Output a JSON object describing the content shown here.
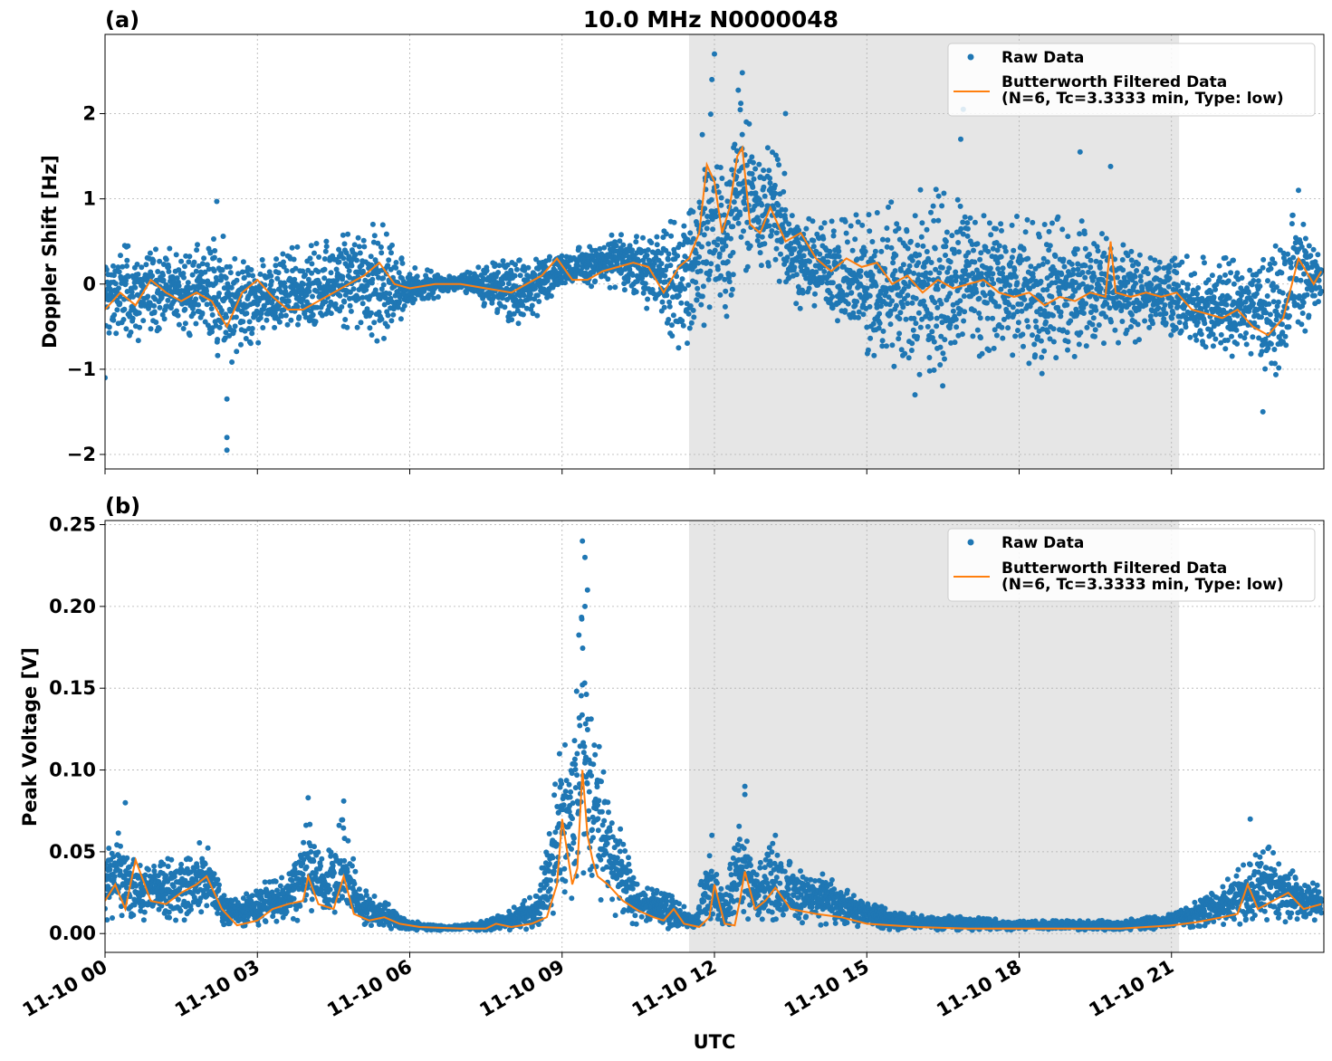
{
  "chart_data": [
    {
      "type": "scatter",
      "panel_label": "(a)",
      "title": "10.0 MHz N0000048",
      "ylabel": "Doppler Shift [Hz]",
      "xlabel": "",
      "ylim": [
        -2.17,
        2.93
      ],
      "yticks": [
        -2,
        -1,
        0,
        1,
        2
      ],
      "ytick_labels": [
        "−2",
        "−1",
        "0",
        "1",
        "2"
      ],
      "grid": true,
      "legend_placement": "top-right",
      "shaded_interval_hours": [
        11.5,
        21.15
      ],
      "series": [
        {
          "name": "Raw Data",
          "kind": "points",
          "color": "#1f77b4",
          "envelope": {
            "x": [
              0,
              0.5,
              1,
              1.5,
              2,
              2.4,
              3,
              3.5,
              4,
              4.5,
              5,
              5.5,
              6,
              7,
              7.5,
              8,
              8.5,
              9,
              9.5,
              10,
              10.5,
              11,
              11.3,
              11.6,
              11.9,
              12.2,
              12.5,
              12.8,
              13.2,
              13.6,
              14,
              14.5,
              15,
              15.5,
              16,
              16.5,
              17,
              17.5,
              18,
              18.5,
              19,
              19.5,
              20,
              20.5,
              21,
              21.5,
              22,
              22.5,
              23,
              23.5,
              23.95
            ],
            "low": [
              -0.75,
              -0.7,
              -0.6,
              -0.6,
              -0.65,
              -1.0,
              -0.7,
              -0.7,
              -0.65,
              -0.55,
              -0.6,
              -0.7,
              -0.3,
              -0.05,
              -0.3,
              -0.5,
              -0.4,
              0.0,
              -0.05,
              -0.05,
              -0.2,
              -0.6,
              -0.8,
              -0.7,
              -0.9,
              -0.5,
              0.0,
              0.3,
              0.0,
              -0.3,
              -0.4,
              -0.6,
              -0.9,
              -1.0,
              -1.1,
              -1.2,
              -0.9,
              -0.8,
              -0.9,
              -1.0,
              -0.9,
              -0.8,
              -0.7,
              -0.7,
              -0.6,
              -0.8,
              -0.9,
              -0.8,
              -1.2,
              -0.7,
              -0.4
            ],
            "high": [
              0.5,
              0.45,
              0.5,
              0.4,
              0.5,
              0.6,
              0.3,
              0.4,
              0.5,
              0.6,
              0.8,
              0.7,
              0.2,
              0.1,
              0.3,
              0.3,
              0.4,
              0.35,
              0.5,
              0.6,
              0.6,
              0.7,
              0.9,
              1.2,
              2.4,
              1.5,
              2.4,
              1.6,
              1.6,
              1.0,
              0.8,
              0.8,
              0.9,
              1.0,
              1.1,
              1.2,
              0.9,
              0.8,
              0.8,
              0.7,
              0.9,
              0.7,
              0.5,
              0.4,
              0.4,
              0.3,
              0.4,
              0.3,
              0.5,
              1.0,
              0.5
            ]
          },
          "outliers": [
            [
              0.0,
              -1.1
            ],
            [
              2.4,
              -1.95
            ],
            [
              2.4,
              -1.8
            ],
            [
              2.4,
              -1.35
            ],
            [
              2.2,
              0.97
            ],
            [
              12.0,
              2.7
            ],
            [
              12.55,
              2.48
            ],
            [
              11.95,
              2.4
            ],
            [
              13.4,
              2.0
            ],
            [
              16.9,
              2.05
            ],
            [
              16.85,
              1.7
            ],
            [
              19.2,
              1.55
            ],
            [
              19.8,
              1.38
            ],
            [
              22.8,
              -1.5
            ],
            [
              23.5,
              1.1
            ],
            [
              18.45,
              -1.05
            ],
            [
              15.95,
              -1.3
            ]
          ]
        },
        {
          "name": "Butterworth Filtered Data\n(N=6, Tc=3.3333 min, Type: low)",
          "kind": "line",
          "color": "#ff7f0e",
          "x": [
            0,
            0.3,
            0.6,
            0.9,
            1.2,
            1.5,
            1.8,
            2.1,
            2.4,
            2.7,
            3.0,
            3.3,
            3.6,
            3.9,
            4.2,
            4.5,
            4.8,
            5.1,
            5.4,
            5.7,
            6.0,
            6.5,
            7.0,
            7.5,
            8.0,
            8.3,
            8.6,
            8.9,
            9.2,
            9.5,
            9.8,
            10.1,
            10.4,
            10.7,
            11.0,
            11.3,
            11.5,
            11.7,
            11.85,
            12.0,
            12.15,
            12.3,
            12.45,
            12.55,
            12.7,
            12.9,
            13.1,
            13.4,
            13.7,
            14.0,
            14.3,
            14.6,
            14.9,
            15.2,
            15.5,
            15.8,
            16.1,
            16.4,
            16.7,
            17.0,
            17.3,
            17.6,
            17.9,
            18.2,
            18.5,
            18.8,
            19.1,
            19.4,
            19.7,
            19.8,
            19.9,
            20.2,
            20.5,
            20.8,
            21.1,
            21.4,
            21.7,
            22.0,
            22.3,
            22.6,
            22.9,
            23.2,
            23.5,
            23.8,
            23.95
          ],
          "y": [
            -0.3,
            -0.1,
            -0.25,
            0.05,
            -0.1,
            -0.2,
            -0.1,
            -0.2,
            -0.5,
            -0.1,
            0.05,
            -0.15,
            -0.3,
            -0.3,
            -0.2,
            -0.1,
            0.0,
            0.1,
            0.25,
            0.0,
            -0.05,
            0.0,
            0.0,
            -0.05,
            -0.1,
            0.0,
            0.1,
            0.3,
            0.05,
            0.05,
            0.15,
            0.2,
            0.25,
            0.2,
            -0.1,
            0.2,
            0.3,
            0.6,
            1.4,
            1.2,
            0.6,
            0.9,
            1.5,
            1.6,
            0.7,
            0.6,
            0.9,
            0.5,
            0.6,
            0.3,
            0.15,
            0.3,
            0.2,
            0.25,
            0.0,
            0.1,
            -0.1,
            0.05,
            -0.05,
            0.0,
            0.05,
            -0.1,
            -0.15,
            -0.1,
            -0.25,
            -0.15,
            -0.2,
            -0.1,
            -0.15,
            0.5,
            -0.1,
            -0.15,
            -0.1,
            -0.15,
            -0.1,
            -0.3,
            -0.35,
            -0.4,
            -0.3,
            -0.5,
            -0.6,
            -0.4,
            0.3,
            0.0,
            0.15
          ]
        }
      ]
    },
    {
      "type": "scatter",
      "panel_label": "(b)",
      "title": "",
      "ylabel": "Peak Voltage [V]",
      "xlabel": "UTC",
      "ylim": [
        -0.0115,
        0.2525
      ],
      "yticks": [
        0.0,
        0.05,
        0.1,
        0.15,
        0.2,
        0.25
      ],
      "ytick_labels": [
        "0.00",
        "0.05",
        "0.10",
        "0.15",
        "0.20",
        "0.25"
      ],
      "grid": true,
      "legend_placement": "top-right",
      "shaded_interval_hours": [
        11.5,
        21.15
      ],
      "x_axis": {
        "unit": "hours since 11-10 00 UTC",
        "xlim": [
          0,
          24
        ],
        "ticks": [
          0,
          3,
          6,
          9,
          12,
          15,
          18,
          21
        ],
        "tick_labels": [
          "11-10 00",
          "11-10 03",
          "11-10 06",
          "11-10 09",
          "11-10 12",
          "11-10 15",
          "11-10 18",
          "11-10 21"
        ]
      },
      "series": [
        {
          "name": "Raw Data",
          "kind": "points",
          "color": "#1f77b4",
          "envelope": {
            "x": [
              0,
              0.3,
              0.6,
              1,
              1.5,
              2,
              2.3,
              2.6,
              3,
              3.5,
              4,
              4.3,
              4.7,
              5,
              5.5,
              6,
              6.5,
              7,
              7.5,
              8,
              8.5,
              8.8,
              9.0,
              9.2,
              9.4,
              9.6,
              9.9,
              10.2,
              10.5,
              11,
              11.3,
              11.6,
              11.9,
              12.2,
              12.5,
              12.8,
              13.1,
              13.5,
              14,
              14.5,
              15,
              15.5,
              16,
              17,
              18,
              19,
              20,
              21,
              21.5,
              22,
              22.5,
              23,
              23.5,
              23.95
            ],
            "low": [
              0.008,
              0.007,
              0.006,
              0.007,
              0.007,
              0.007,
              0.005,
              0.004,
              0.005,
              0.006,
              0.007,
              0.007,
              0.008,
              0.005,
              0.003,
              0.002,
              0.002,
              0.002,
              0.002,
              0.002,
              0.003,
              0.008,
              0.015,
              0.02,
              0.025,
              0.02,
              0.012,
              0.008,
              0.004,
              0.003,
              0.003,
              0.003,
              0.003,
              0.004,
              0.008,
              0.007,
              0.006,
              0.005,
              0.005,
              0.004,
              0.003,
              0.002,
              0.002,
              0.002,
              0.002,
              0.002,
              0.002,
              0.003,
              0.004,
              0.005,
              0.006,
              0.006,
              0.007,
              0.007
            ],
            "high": [
              0.05,
              0.065,
              0.045,
              0.045,
              0.05,
              0.06,
              0.03,
              0.02,
              0.03,
              0.035,
              0.075,
              0.045,
              0.075,
              0.03,
              0.02,
              0.008,
              0.005,
              0.005,
              0.008,
              0.015,
              0.025,
              0.07,
              0.14,
              0.13,
              0.22,
              0.14,
              0.09,
              0.06,
              0.03,
              0.03,
              0.02,
              0.01,
              0.06,
              0.02,
              0.085,
              0.04,
              0.06,
              0.045,
              0.04,
              0.03,
              0.02,
              0.015,
              0.012,
              0.01,
              0.008,
              0.008,
              0.008,
              0.012,
              0.02,
              0.03,
              0.045,
              0.055,
              0.035,
              0.03
            ]
          },
          "outliers": [
            [
              9.4,
              0.24
            ],
            [
              9.45,
              0.23
            ],
            [
              9.5,
              0.21
            ],
            [
              9.45,
              0.2
            ],
            [
              12.6,
              0.09
            ],
            [
              12.6,
              0.085
            ],
            [
              22.55,
              0.07
            ],
            [
              4.0,
              0.083
            ],
            [
              4.7,
              0.081
            ],
            [
              0.4,
              0.08
            ],
            [
              13.2,
              0.06
            ],
            [
              11.95,
              0.06
            ]
          ]
        },
        {
          "name": "Butterworth Filtered Data\n(N=6, Tc=3.3333 min, Type: low)",
          "kind": "line",
          "color": "#ff7f0e",
          "x": [
            0,
            0.2,
            0.4,
            0.6,
            0.9,
            1.2,
            1.5,
            1.8,
            2.0,
            2.3,
            2.6,
            3.0,
            3.3,
            3.6,
            3.9,
            4.0,
            4.2,
            4.5,
            4.7,
            4.9,
            5.2,
            5.5,
            5.8,
            6.2,
            7.0,
            7.5,
            7.7,
            8.0,
            8.4,
            8.7,
            8.9,
            9.0,
            9.1,
            9.2,
            9.3,
            9.4,
            9.5,
            9.6,
            9.7,
            9.9,
            10.2,
            10.5,
            10.8,
            11.0,
            11.2,
            11.4,
            11.7,
            11.9,
            12.0,
            12.2,
            12.4,
            12.5,
            12.6,
            12.8,
            13.0,
            13.2,
            13.5,
            14.0,
            14.5,
            15.0,
            16.0,
            17.0,
            18.0,
            19.0,
            20.0,
            20.5,
            21.0,
            21.5,
            22.0,
            22.3,
            22.5,
            22.7,
            23.0,
            23.3,
            23.6,
            23.95
          ],
          "y": [
            0.02,
            0.03,
            0.015,
            0.045,
            0.02,
            0.018,
            0.025,
            0.03,
            0.035,
            0.015,
            0.005,
            0.008,
            0.015,
            0.018,
            0.02,
            0.035,
            0.018,
            0.015,
            0.035,
            0.012,
            0.008,
            0.01,
            0.006,
            0.004,
            0.003,
            0.003,
            0.006,
            0.004,
            0.006,
            0.01,
            0.03,
            0.07,
            0.05,
            0.03,
            0.04,
            0.1,
            0.06,
            0.045,
            0.035,
            0.03,
            0.02,
            0.014,
            0.01,
            0.008,
            0.015,
            0.006,
            0.004,
            0.01,
            0.03,
            0.006,
            0.005,
            0.02,
            0.038,
            0.015,
            0.02,
            0.028,
            0.015,
            0.012,
            0.01,
            0.006,
            0.004,
            0.003,
            0.003,
            0.003,
            0.003,
            0.004,
            0.005,
            0.007,
            0.01,
            0.012,
            0.03,
            0.015,
            0.02,
            0.025,
            0.015,
            0.018
          ]
        }
      ]
    }
  ]
}
